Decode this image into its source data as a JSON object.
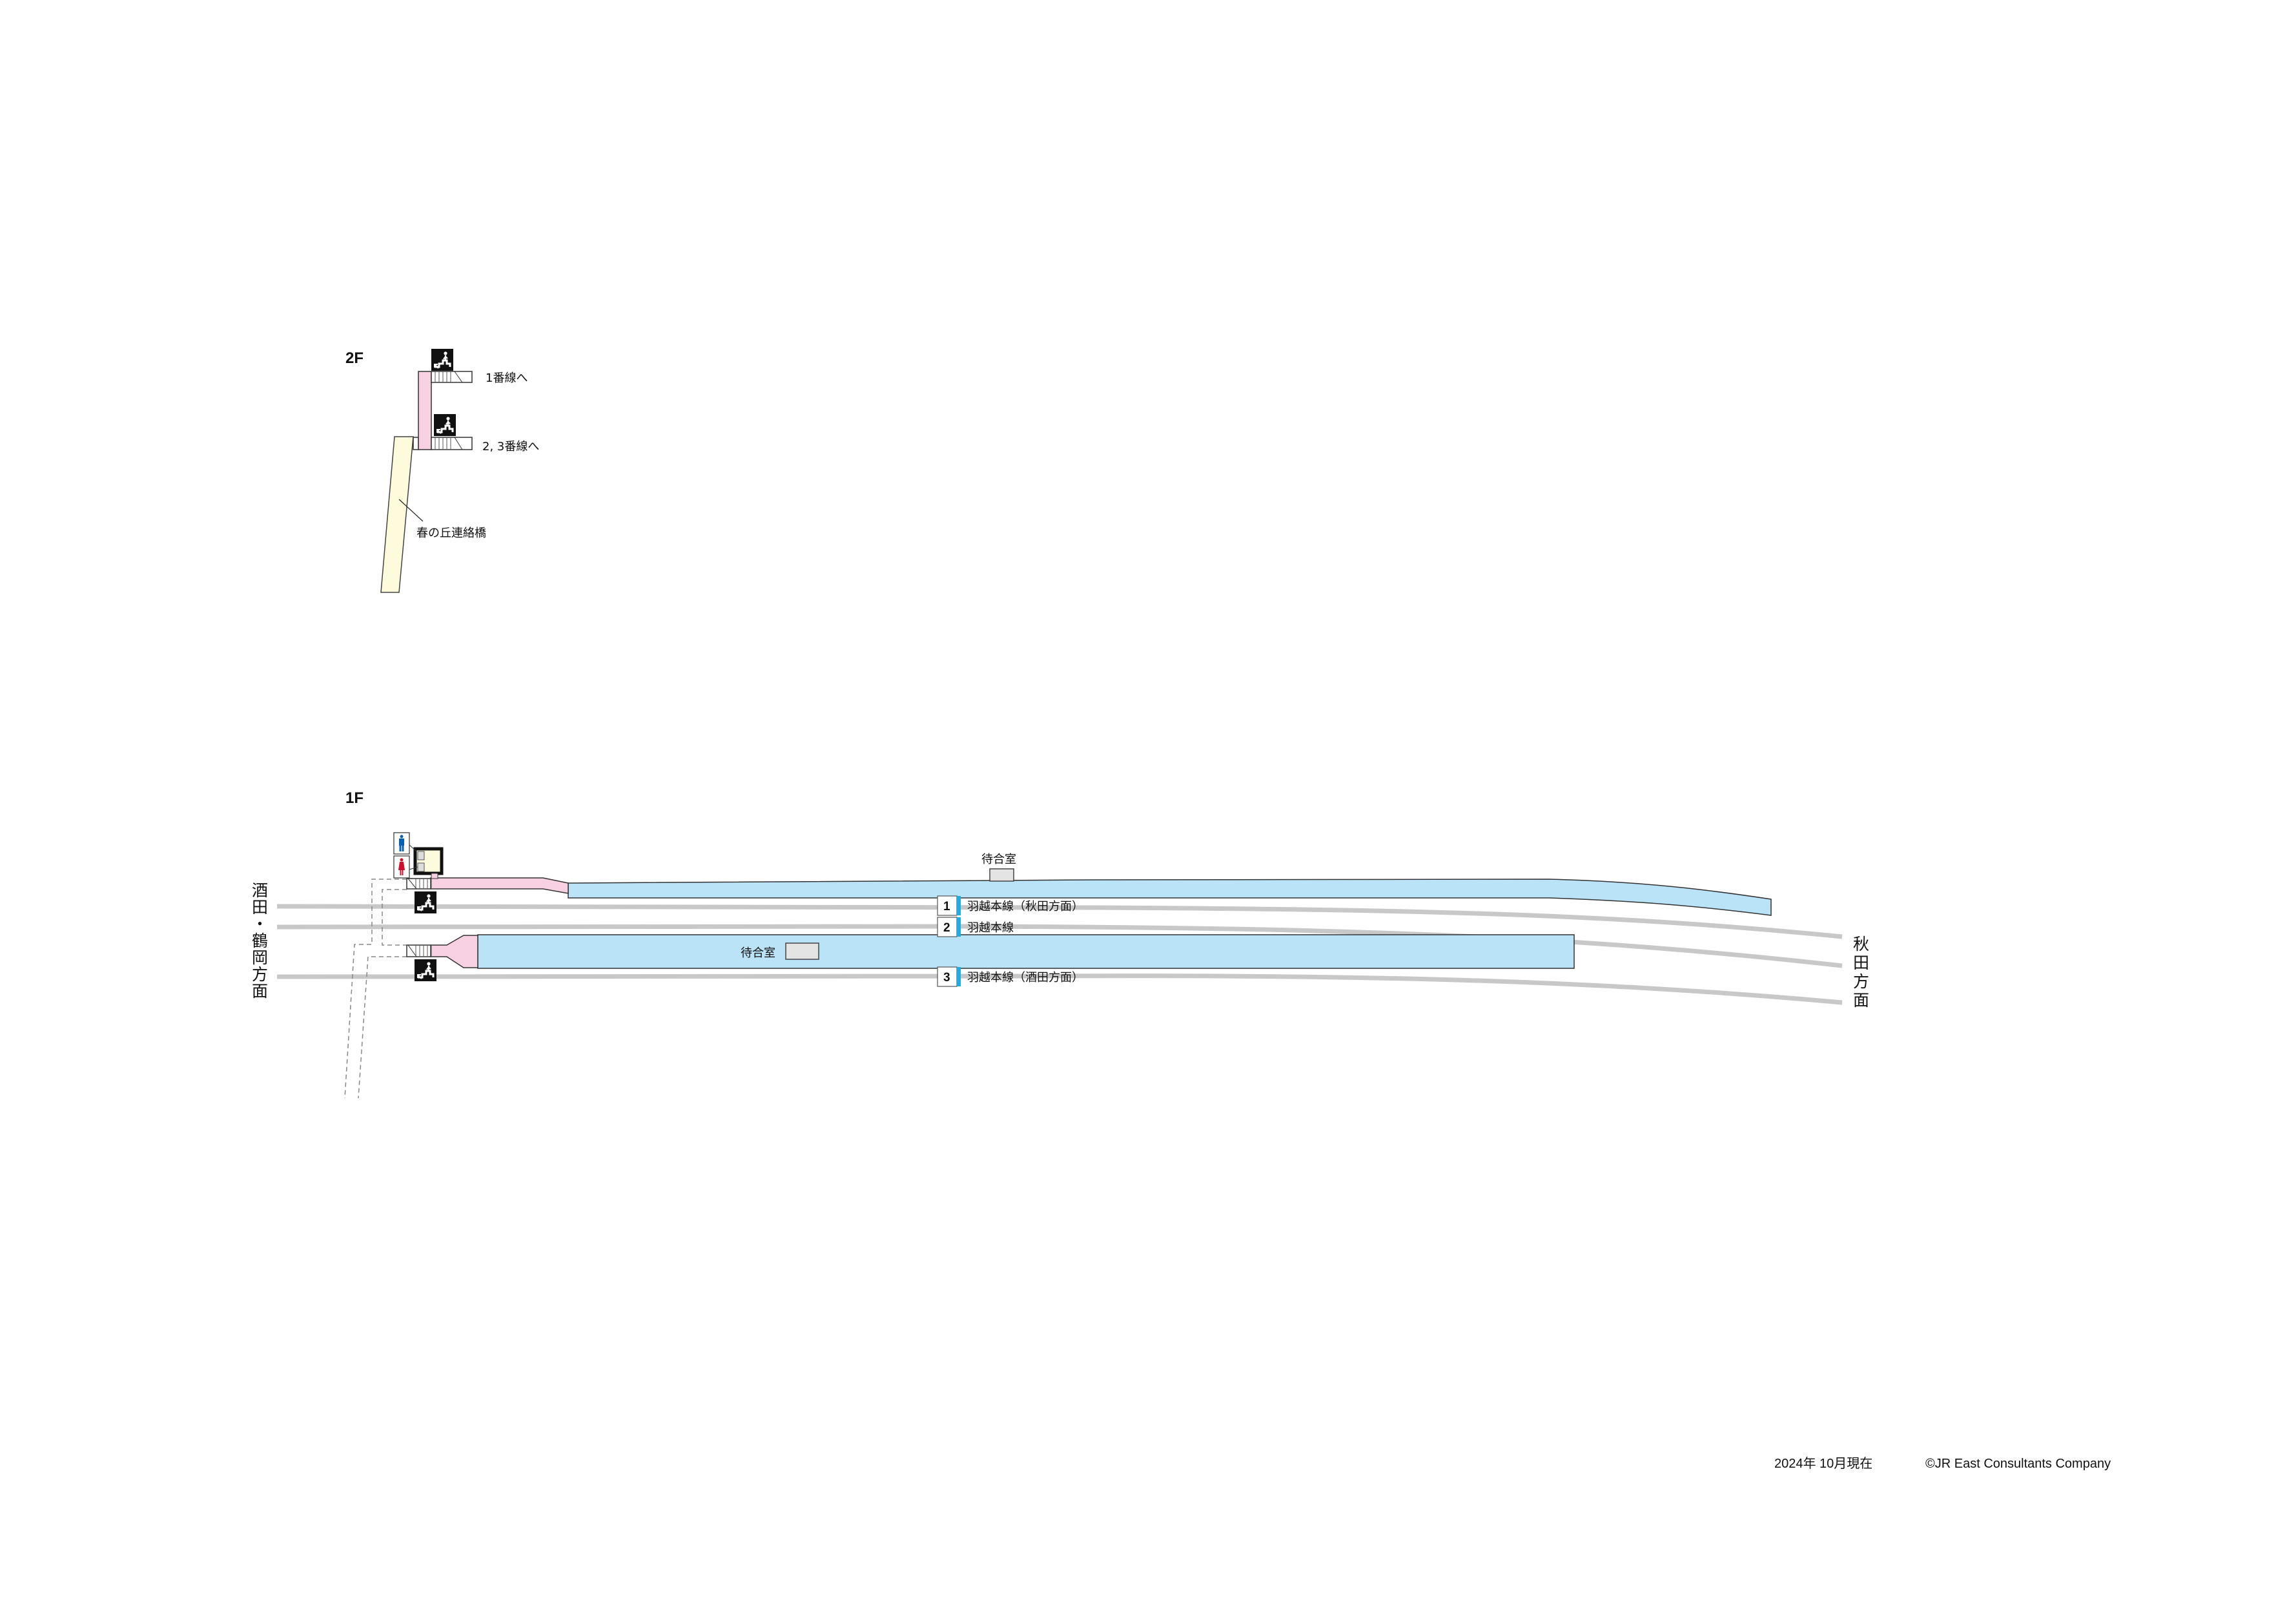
{
  "floors": {
    "upper": {
      "label": "2F",
      "stair_to_track1": "1番線へ",
      "stair_to_track2_3": "2, 3番線へ",
      "bridge_name": "春の丘連絡橋"
    },
    "ground": {
      "label": "1F",
      "waiting_room_platform1": "待合室",
      "waiting_room_platform2": "待合室"
    }
  },
  "directions": {
    "west": "酒田・鶴岡方面",
    "east": "秋田方面"
  },
  "tracks": [
    {
      "number": "1",
      "label": "羽越本線（秋田方面）"
    },
    {
      "number": "2",
      "label": "羽越本線"
    },
    {
      "number": "3",
      "label": "羽越本線（酒田方面）"
    }
  ],
  "icons": [
    "escalator-up-icon",
    "toilet-men-icon",
    "toilet-women-icon"
  ],
  "colors": {
    "platform": "#bae3f7",
    "concourse": "#f7d0e2",
    "bridge": "#fdfbdc",
    "track": "#c8c8c8",
    "track_number_bar": "#1aaee2",
    "men": "#0a5fb0",
    "women": "#d0102a",
    "waiting_room": "#e4e4e4"
  },
  "footer": {
    "date": "2024年 10月現在",
    "copyright": "©JR East Consultants Company"
  }
}
